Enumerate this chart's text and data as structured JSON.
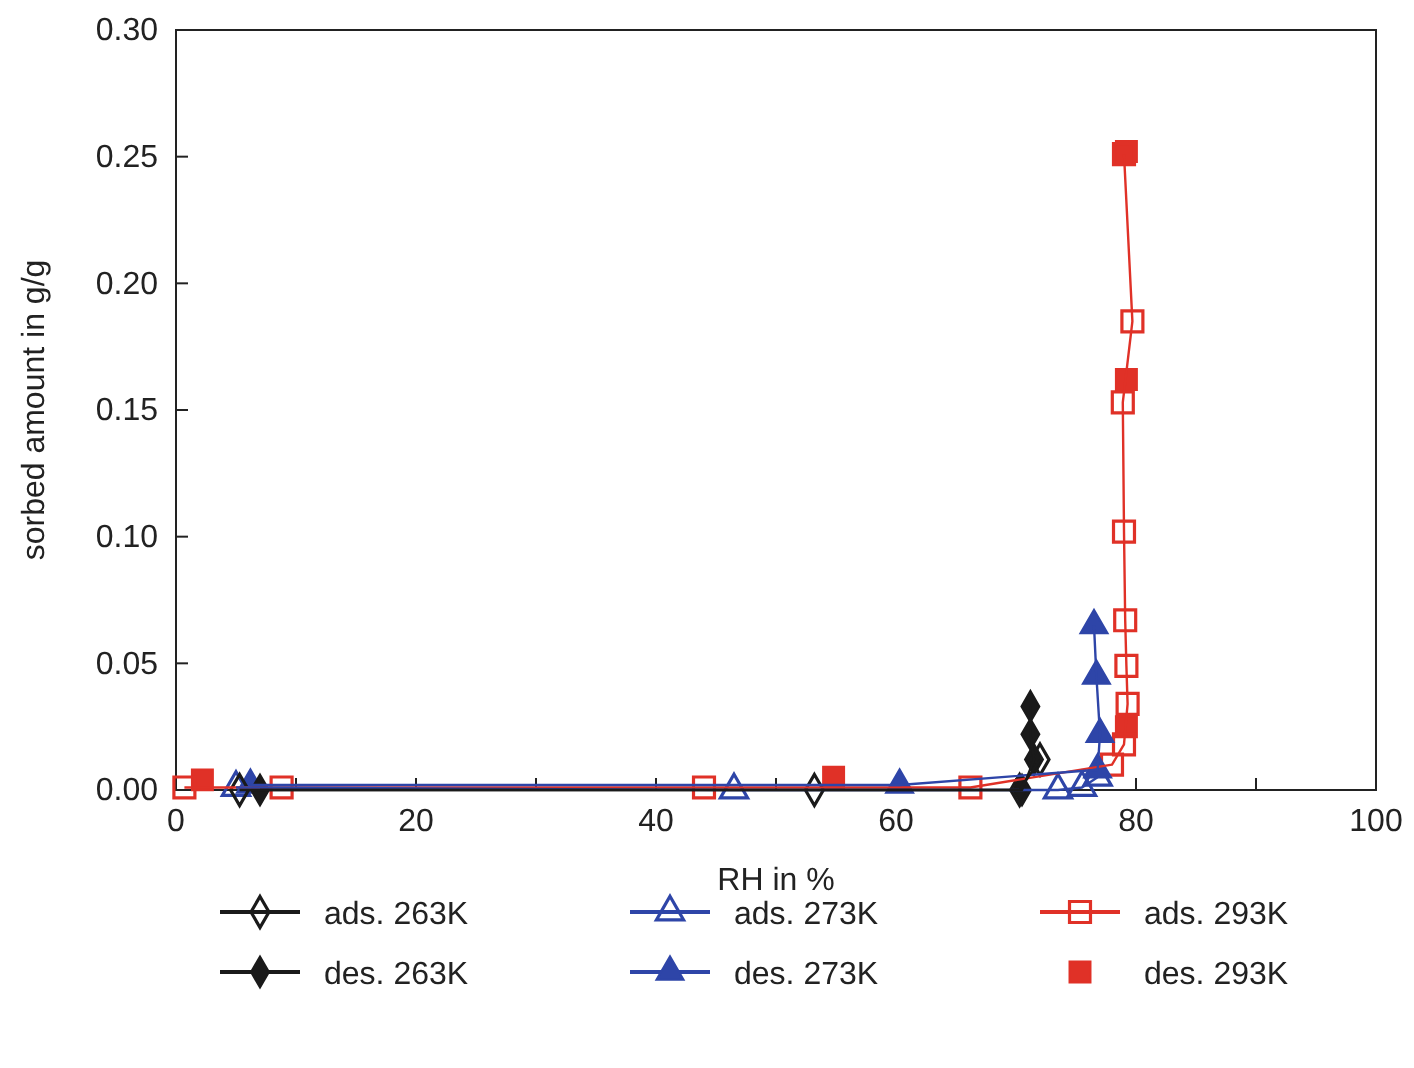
{
  "chart_data": {
    "type": "line",
    "xlabel": "RH in %",
    "ylabel": "sorbed amount in g/g",
    "xlim": [
      0,
      100
    ],
    "ylim": [
      0,
      0.3
    ],
    "xticks": [
      0,
      {
        "value": 10,
        "label": null
      },
      20,
      {
        "value": 30,
        "label": null
      },
      40,
      {
        "value": 50,
        "label": null
      },
      60,
      {
        "value": 70,
        "label": null
      },
      80,
      {
        "value": 90,
        "label": null
      },
      100
    ],
    "yticks": [
      "0.00",
      {
        "value": 0.05,
        "label": "0.05"
      },
      {
        "value": 0.1,
        "label": "0.10"
      },
      {
        "value": 0.15,
        "label": "0.15"
      },
      {
        "value": 0.2,
        "label": "0.20"
      },
      {
        "value": 0.25,
        "label": "0.25"
      },
      {
        "value": 0.3,
        "label": "0.30"
      }
    ],
    "grid": false,
    "legend": "bottom",
    "line_style": "solid",
    "series": [
      {
        "name": "ads. 263K",
        "color": "#1a1a1a",
        "marker": "diamond",
        "x": [
          5.3,
          53.2,
          70.3,
          72.0
        ],
        "values": [
          0,
          0,
          0,
          0.012
        ]
      },
      {
        "name": "des. 263K",
        "color": "#1a1a1a",
        "marker": "diamond",
        "x": [
          71.2,
          71.2,
          71.5,
          70.5,
          7.0
        ],
        "values": [
          0.033,
          0.022,
          0.012,
          0,
          0
        ]
      },
      {
        "name": "ads. 273K",
        "color": "#2e45a8",
        "marker": "triangle",
        "x": [
          5.0,
          46.5,
          73.5,
          75.5,
          76.8
        ],
        "values": [
          0.001,
          0.0,
          0.0,
          0.001,
          0.005
        ]
      },
      {
        "name": "des. 273K",
        "color": "#2e45a8",
        "marker": "triangle",
        "x": [
          76.5,
          76.7,
          77.0,
          76.8,
          60.3,
          6.2
        ],
        "values": [
          0.065,
          0.045,
          0.022,
          0.008,
          0.002,
          0.002
        ]
      },
      {
        "name": "ads. 293K",
        "color": "#e03127",
        "marker": "square",
        "x": [
          0.7,
          8.8,
          44.0,
          66.2,
          78.0,
          79.0,
          79.3,
          79.2,
          79.1,
          79.0,
          78.9,
          79.7,
          79.0
        ],
        "values": [
          0.001,
          0.001,
          0.001,
          0.001,
          0.01,
          0.018,
          0.034,
          0.049,
          0.067,
          0.102,
          0.153,
          0.185,
          0.251
        ]
      },
      {
        "name": "des. 293K",
        "type": "scatter",
        "color": "#e03127",
        "marker": "square",
        "x": [
          2.2,
          54.8,
          79.2,
          79.2,
          79.2
        ],
        "values": [
          0.004,
          0.005,
          0.025,
          0.162,
          0.252
        ]
      }
    ]
  }
}
